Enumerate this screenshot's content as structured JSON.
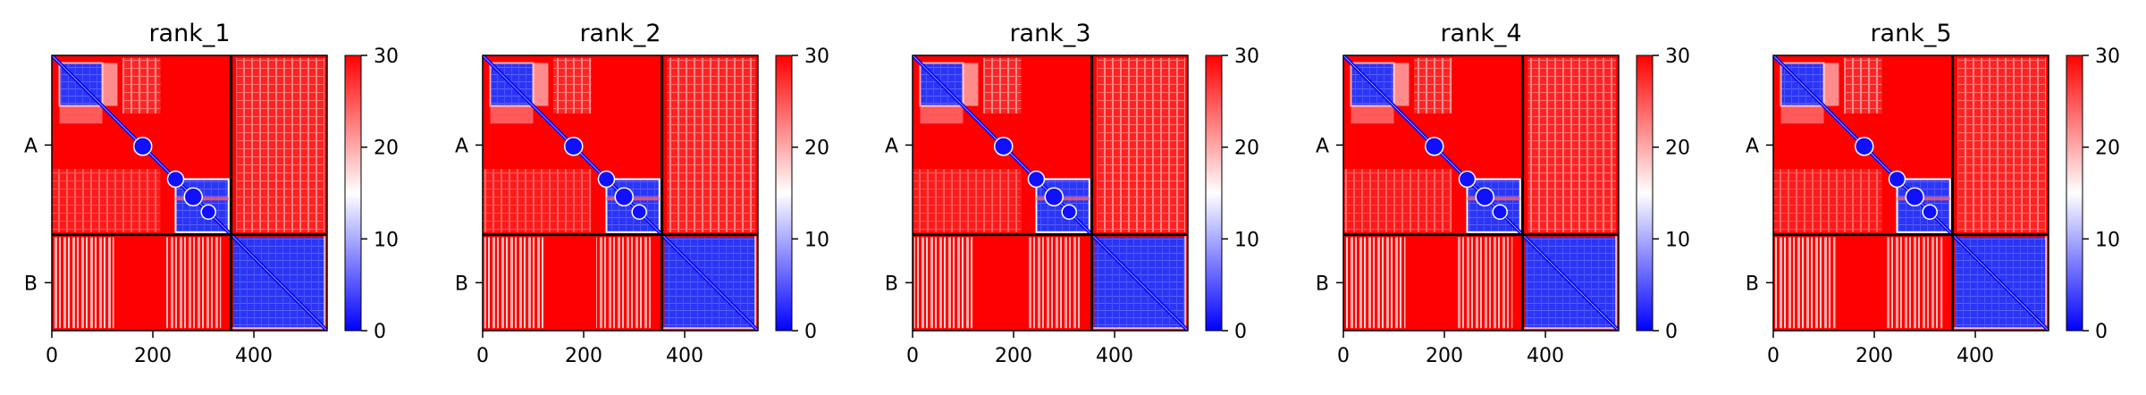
{
  "chart_data": [
    {
      "type": "heatmap",
      "title": "rank_1",
      "x": {
        "ticks": [
          0,
          200,
          400
        ],
        "lim": [
          0,
          545
        ]
      },
      "y": {
        "categories": [
          "A",
          "B"
        ]
      },
      "chains": [
        {
          "name": "A",
          "start": 0,
          "end": 355
        },
        {
          "name": "B",
          "start": 355,
          "end": 545
        }
      ],
      "colorbar": {
        "ticks": [
          0,
          10,
          20,
          30
        ],
        "range": [
          0,
          30
        ],
        "colors": [
          "#0000ff",
          "#ffffff",
          "#ff0000"
        ]
      }
    },
    {
      "type": "heatmap",
      "title": "rank_2",
      "x": {
        "ticks": [
          0,
          200,
          400
        ],
        "lim": [
          0,
          545
        ]
      },
      "y": {
        "categories": [
          "A",
          "B"
        ]
      },
      "chains": [
        {
          "name": "A",
          "start": 0,
          "end": 355
        },
        {
          "name": "B",
          "start": 355,
          "end": 545
        }
      ],
      "colorbar": {
        "ticks": [
          0,
          10,
          20,
          30
        ],
        "range": [
          0,
          30
        ],
        "colors": [
          "#0000ff",
          "#ffffff",
          "#ff0000"
        ]
      }
    },
    {
      "type": "heatmap",
      "title": "rank_3",
      "x": {
        "ticks": [
          0,
          200,
          400
        ],
        "lim": [
          0,
          545
        ]
      },
      "y": {
        "categories": [
          "A",
          "B"
        ]
      },
      "chains": [
        {
          "name": "A",
          "start": 0,
          "end": 355
        },
        {
          "name": "B",
          "start": 355,
          "end": 545
        }
      ],
      "colorbar": {
        "ticks": [
          0,
          10,
          20,
          30
        ],
        "range": [
          0,
          30
        ],
        "colors": [
          "#0000ff",
          "#ffffff",
          "#ff0000"
        ]
      }
    },
    {
      "type": "heatmap",
      "title": "rank_4",
      "x": {
        "ticks": [
          0,
          200,
          400
        ],
        "lim": [
          0,
          545
        ]
      },
      "y": {
        "categories": [
          "A",
          "B"
        ]
      },
      "chains": [
        {
          "name": "A",
          "start": 0,
          "end": 355
        },
        {
          "name": "B",
          "start": 355,
          "end": 545
        }
      ],
      "colorbar": {
        "ticks": [
          0,
          10,
          20,
          30
        ],
        "range": [
          0,
          30
        ],
        "colors": [
          "#0000ff",
          "#ffffff",
          "#ff0000"
        ]
      }
    },
    {
      "type": "heatmap",
      "title": "rank_5",
      "x": {
        "ticks": [
          0,
          200,
          400
        ],
        "lim": [
          0,
          545
        ]
      },
      "y": {
        "categories": [
          "A",
          "B"
        ]
      },
      "chains": [
        {
          "name": "A",
          "start": 0,
          "end": 355
        },
        {
          "name": "B",
          "start": 355,
          "end": 545
        }
      ],
      "colorbar": {
        "ticks": [
          0,
          10,
          20,
          30
        ],
        "range": [
          0,
          30
        ],
        "colors": [
          "#0000ff",
          "#ffffff",
          "#ff0000"
        ]
      }
    }
  ]
}
